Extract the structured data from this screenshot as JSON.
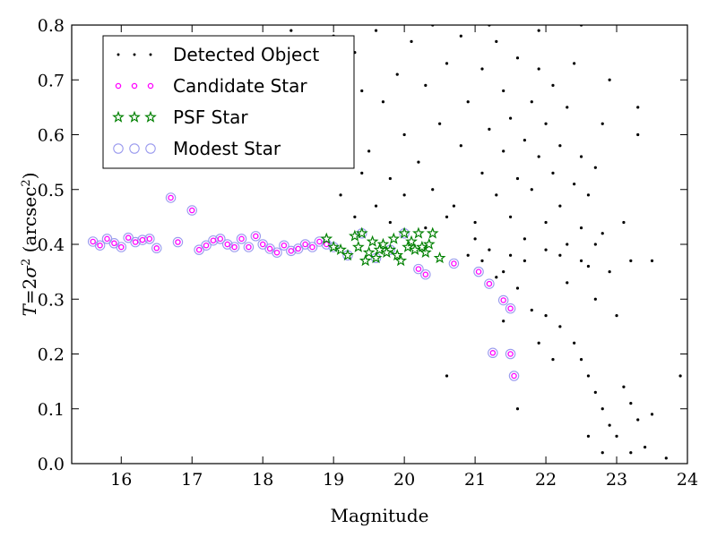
{
  "chart_data": {
    "type": "scatter",
    "xlabel": "Magnitude",
    "ylabel_parts": [
      "T",
      "=",
      "2",
      "σ",
      "2",
      " (arcsec",
      "2",
      ")"
    ],
    "xlim": [
      15.3,
      24
    ],
    "ylim": [
      0.0,
      0.8
    ],
    "x_ticks": [
      16,
      17,
      18,
      19,
      20,
      21,
      22,
      23,
      24
    ],
    "y_ticks": [
      0.0,
      0.1,
      0.2,
      0.3,
      0.4,
      0.5,
      0.6,
      0.7,
      0.8
    ],
    "x_tick_labels": [
      "16",
      "17",
      "18",
      "19",
      "20",
      "21",
      "22",
      "23",
      "24"
    ],
    "y_tick_labels": [
      "0.0",
      "0.1",
      "0.2",
      "0.3",
      "0.4",
      "0.5",
      "0.6",
      "0.7",
      "0.8"
    ],
    "grid": false,
    "legend_position": "top-left",
    "series": [
      {
        "name": "Detected Object",
        "marker": "dot",
        "color": "#000000",
        "points": [
          [
            19.2,
            0.61
          ],
          [
            19.3,
            0.75
          ],
          [
            19.4,
            0.68
          ],
          [
            19.5,
            0.57
          ],
          [
            19.6,
            0.79
          ],
          [
            19.7,
            0.66
          ],
          [
            19.8,
            0.52
          ],
          [
            19.9,
            0.71
          ],
          [
            20.0,
            0.6
          ],
          [
            20.1,
            0.77
          ],
          [
            20.2,
            0.55
          ],
          [
            20.3,
            0.69
          ],
          [
            20.4,
            0.5
          ],
          [
            20.5,
            0.62
          ],
          [
            20.6,
            0.73
          ],
          [
            20.7,
            0.47
          ],
          [
            20.8,
            0.58
          ],
          [
            20.9,
            0.66
          ],
          [
            21.0,
            0.44
          ],
          [
            21.1,
            0.53
          ],
          [
            21.1,
            0.72
          ],
          [
            21.2,
            0.61
          ],
          [
            21.3,
            0.49
          ],
          [
            21.3,
            0.77
          ],
          [
            21.4,
            0.57
          ],
          [
            21.4,
            0.68
          ],
          [
            21.5,
            0.45
          ],
          [
            21.5,
            0.63
          ],
          [
            21.6,
            0.52
          ],
          [
            21.6,
            0.74
          ],
          [
            21.7,
            0.59
          ],
          [
            21.7,
            0.41
          ],
          [
            21.8,
            0.66
          ],
          [
            21.8,
            0.5
          ],
          [
            21.9,
            0.56
          ],
          [
            21.9,
            0.72
          ],
          [
            22.0,
            0.44
          ],
          [
            22.0,
            0.62
          ],
          [
            22.1,
            0.53
          ],
          [
            22.1,
            0.69
          ],
          [
            22.2,
            0.47
          ],
          [
            22.2,
            0.58
          ],
          [
            22.3,
            0.4
          ],
          [
            22.3,
            0.65
          ],
          [
            22.4,
            0.51
          ],
          [
            22.4,
            0.73
          ],
          [
            22.5,
            0.43
          ],
          [
            22.5,
            0.56
          ],
          [
            22.6,
            0.36
          ],
          [
            22.6,
            0.49
          ],
          [
            22.7,
            0.3
          ],
          [
            22.7,
            0.54
          ],
          [
            22.8,
            0.42
          ],
          [
            22.8,
            0.62
          ],
          [
            22.9,
            0.35
          ],
          [
            22.9,
            0.7
          ],
          [
            23.0,
            0.27
          ],
          [
            23.1,
            0.44
          ],
          [
            23.2,
            0.37
          ],
          [
            23.3,
            0.6
          ],
          [
            23.5,
            0.37
          ],
          [
            21.1,
            0.37
          ],
          [
            21.3,
            0.34
          ],
          [
            21.6,
            0.32
          ],
          [
            21.8,
            0.28
          ],
          [
            22.0,
            0.27
          ],
          [
            22.2,
            0.25
          ],
          [
            22.4,
            0.22
          ],
          [
            22.5,
            0.19
          ],
          [
            22.6,
            0.16
          ],
          [
            22.7,
            0.13
          ],
          [
            22.8,
            0.1
          ],
          [
            22.9,
            0.07
          ],
          [
            23.0,
            0.05
          ],
          [
            23.1,
            0.14
          ],
          [
            23.2,
            0.11
          ],
          [
            23.3,
            0.08
          ],
          [
            23.4,
            0.03
          ],
          [
            23.5,
            0.09
          ],
          [
            23.7,
            0.01
          ],
          [
            23.9,
            0.16
          ],
          [
            22.1,
            0.19
          ],
          [
            21.9,
            0.22
          ],
          [
            21.6,
            0.1
          ],
          [
            21.4,
            0.26
          ],
          [
            22.6,
            0.05
          ],
          [
            22.8,
            0.02
          ],
          [
            23.2,
            0.02
          ],
          [
            20.6,
            0.16
          ],
          [
            21.4,
            0.35
          ],
          [
            22.3,
            0.33
          ],
          [
            19.1,
            0.49
          ],
          [
            19.3,
            0.45
          ],
          [
            19.4,
            0.53
          ],
          [
            19.6,
            0.47
          ],
          [
            19.8,
            0.44
          ],
          [
            20.0,
            0.49
          ],
          [
            20.3,
            0.43
          ],
          [
            20.6,
            0.45
          ],
          [
            20.9,
            0.38
          ],
          [
            21.0,
            0.41
          ],
          [
            21.2,
            0.39
          ],
          [
            21.5,
            0.38
          ],
          [
            21.7,
            0.37
          ],
          [
            22.0,
            0.39
          ],
          [
            22.2,
            0.38
          ],
          [
            22.5,
            0.37
          ],
          [
            22.7,
            0.4
          ],
          [
            18.4,
            0.79
          ],
          [
            18.9,
            0.56
          ],
          [
            19.0,
            0.78
          ],
          [
            20.4,
            0.8
          ],
          [
            20.8,
            0.78
          ],
          [
            21.2,
            0.8
          ],
          [
            21.9,
            0.79
          ],
          [
            22.5,
            0.8
          ],
          [
            23.3,
            0.65
          ]
        ]
      },
      {
        "name": "Candidate Star",
        "marker": "small-circle",
        "color": "#ff00ff",
        "points": [
          [
            15.6,
            0.405
          ],
          [
            15.7,
            0.398
          ],
          [
            15.8,
            0.41
          ],
          [
            15.9,
            0.402
          ],
          [
            16.0,
            0.395
          ],
          [
            16.1,
            0.412
          ],
          [
            16.2,
            0.404
          ],
          [
            16.3,
            0.408
          ],
          [
            16.4,
            0.41
          ],
          [
            16.5,
            0.393
          ],
          [
            16.7,
            0.485
          ],
          [
            16.8,
            0.404
          ],
          [
            17.0,
            0.462
          ],
          [
            17.1,
            0.39
          ],
          [
            17.2,
            0.398
          ],
          [
            17.3,
            0.407
          ],
          [
            17.4,
            0.41
          ],
          [
            17.5,
            0.4
          ],
          [
            17.6,
            0.395
          ],
          [
            17.7,
            0.41
          ],
          [
            17.8,
            0.395
          ],
          [
            17.9,
            0.415
          ],
          [
            18.0,
            0.4
          ],
          [
            18.1,
            0.392
          ],
          [
            18.2,
            0.385
          ],
          [
            18.3,
            0.398
          ],
          [
            18.4,
            0.388
          ],
          [
            18.5,
            0.392
          ],
          [
            18.6,
            0.4
          ],
          [
            18.7,
            0.395
          ],
          [
            18.8,
            0.405
          ],
          [
            18.9,
            0.4
          ],
          [
            20.2,
            0.355
          ],
          [
            20.3,
            0.345
          ],
          [
            20.7,
            0.365
          ],
          [
            21.05,
            0.35
          ],
          [
            21.2,
            0.328
          ],
          [
            21.25,
            0.202
          ],
          [
            21.4,
            0.298
          ],
          [
            21.5,
            0.283
          ],
          [
            21.5,
            0.2
          ],
          [
            21.55,
            0.16
          ]
        ]
      },
      {
        "name": "PSF Star",
        "marker": "star",
        "color": "#008000",
        "points": [
          [
            18.9,
            0.41
          ],
          [
            19.0,
            0.395
          ],
          [
            19.1,
            0.39
          ],
          [
            19.2,
            0.38
          ],
          [
            19.3,
            0.415
          ],
          [
            19.35,
            0.395
          ],
          [
            19.4,
            0.42
          ],
          [
            19.5,
            0.385
          ],
          [
            19.55,
            0.405
          ],
          [
            19.6,
            0.375
          ],
          [
            19.7,
            0.4
          ],
          [
            19.8,
            0.39
          ],
          [
            19.85,
            0.41
          ],
          [
            19.9,
            0.38
          ],
          [
            20.0,
            0.42
          ],
          [
            20.05,
            0.395
          ],
          [
            20.1,
            0.405
          ],
          [
            20.15,
            0.39
          ],
          [
            20.2,
            0.42
          ],
          [
            20.3,
            0.385
          ],
          [
            20.35,
            0.4
          ],
          [
            20.4,
            0.42
          ],
          [
            20.5,
            0.375
          ],
          [
            19.45,
            0.37
          ],
          [
            19.75,
            0.385
          ],
          [
            20.25,
            0.395
          ],
          [
            19.95,
            0.37
          ],
          [
            19.65,
            0.39
          ]
        ]
      },
      {
        "name": "Modest Star",
        "marker": "open-circle",
        "color": "#9999ee",
        "points": [
          [
            15.6,
            0.405
          ],
          [
            15.7,
            0.398
          ],
          [
            15.8,
            0.41
          ],
          [
            15.9,
            0.402
          ],
          [
            16.0,
            0.395
          ],
          [
            16.1,
            0.412
          ],
          [
            16.2,
            0.404
          ],
          [
            16.3,
            0.408
          ],
          [
            16.4,
            0.41
          ],
          [
            16.5,
            0.393
          ],
          [
            16.7,
            0.485
          ],
          [
            16.8,
            0.404
          ],
          [
            17.0,
            0.462
          ],
          [
            17.1,
            0.39
          ],
          [
            17.2,
            0.398
          ],
          [
            17.3,
            0.407
          ],
          [
            17.4,
            0.41
          ],
          [
            17.5,
            0.4
          ],
          [
            17.6,
            0.395
          ],
          [
            17.7,
            0.41
          ],
          [
            17.8,
            0.395
          ],
          [
            17.9,
            0.415
          ],
          [
            18.0,
            0.4
          ],
          [
            18.1,
            0.392
          ],
          [
            18.2,
            0.385
          ],
          [
            18.3,
            0.398
          ],
          [
            18.4,
            0.388
          ],
          [
            18.5,
            0.392
          ],
          [
            18.6,
            0.4
          ],
          [
            18.7,
            0.395
          ],
          [
            18.8,
            0.405
          ],
          [
            18.9,
            0.4
          ],
          [
            19.0,
            0.395
          ],
          [
            19.2,
            0.38
          ],
          [
            19.4,
            0.42
          ],
          [
            19.6,
            0.375
          ],
          [
            19.8,
            0.39
          ],
          [
            20.0,
            0.42
          ],
          [
            20.2,
            0.355
          ],
          [
            20.3,
            0.345
          ],
          [
            20.7,
            0.365
          ],
          [
            21.05,
            0.35
          ],
          [
            21.2,
            0.328
          ],
          [
            21.25,
            0.202
          ],
          [
            21.4,
            0.298
          ],
          [
            21.5,
            0.283
          ],
          [
            21.5,
            0.2
          ],
          [
            21.55,
            0.16
          ]
        ]
      }
    ]
  }
}
